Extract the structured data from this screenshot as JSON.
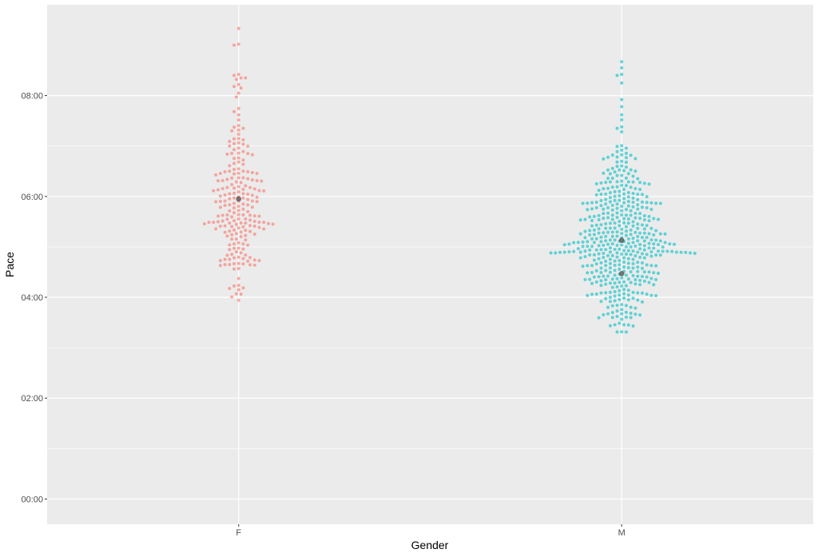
{
  "chart_data": {
    "type": "scatter",
    "title": "",
    "xlabel": "Gender",
    "ylabel": "Pace",
    "categories": [
      "F",
      "M"
    ],
    "y_unit": "minutes per unit distance (mm:ss)",
    "ylim": [
      -0.5,
      9.8
    ],
    "y_ticks": [
      0,
      2,
      4,
      6,
      8
    ],
    "y_tick_labels": [
      "00:00",
      "02:00",
      "04:00",
      "06:00",
      "08:00"
    ],
    "grid": true,
    "background": "#ebebeb",
    "series": [
      {
        "category": "F",
        "color": "#f8766d",
        "point_alpha": 0.6,
        "count": 215,
        "min": 3.85,
        "max": 9.33,
        "mode": 5.5,
        "mean": 5.95,
        "outliers": [
          9.33,
          9.02,
          9.0,
          8.42,
          8.4,
          8.35,
          8.35,
          8.32,
          8.22,
          8.18,
          8.15,
          8.05
        ]
      },
      {
        "category": "M",
        "color": "#00bfc4",
        "point_alpha": 0.6,
        "count": 470,
        "min": 3.2,
        "max": 8.67,
        "mode": 5.0,
        "mean": 5.13,
        "outliers": [
          8.67,
          8.55,
          8.42,
          8.4,
          8.25,
          7.92,
          7.78,
          7.62,
          7.52,
          7.38,
          7.35,
          7.28
        ]
      }
    ],
    "summary_points": [
      {
        "category": "F",
        "value": 5.95
      },
      {
        "category": "M",
        "value": 5.13
      },
      {
        "category": "M",
        "value": 4.47
      }
    ]
  }
}
